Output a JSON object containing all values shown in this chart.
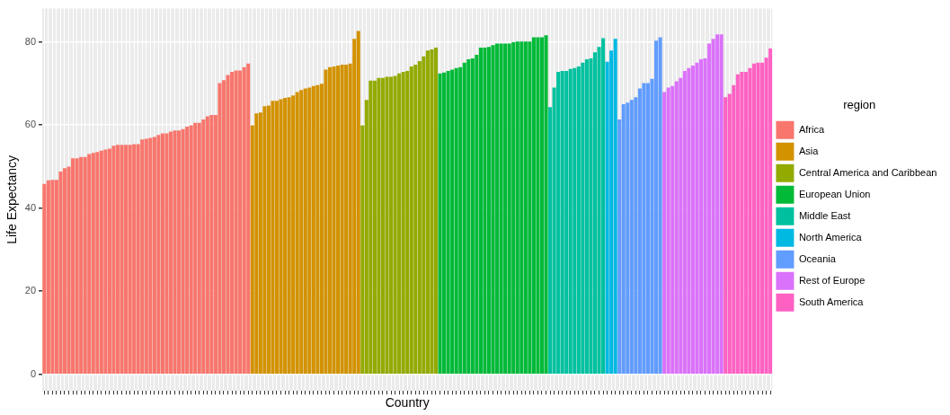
{
  "chart_data": {
    "type": "bar",
    "xlabel": "Country",
    "ylabel": "Life Expectancy",
    "legend_title": "region",
    "legend": "right",
    "grid": true,
    "tick_labels": "y",
    "ylim": [
      -4,
      88
    ],
    "yticks": [
      0,
      20,
      40,
      60,
      80
    ],
    "categories": [
      null,
      null,
      null,
      null,
      null,
      null,
      null,
      null,
      null,
      null,
      null,
      null,
      null,
      null,
      null,
      null,
      null,
      null,
      null,
      null,
      null,
      null,
      null,
      null,
      null,
      null,
      null,
      null,
      null,
      null,
      null,
      null,
      null,
      null,
      null,
      null,
      null,
      null,
      null,
      null,
      null,
      null,
      null,
      null,
      null,
      null,
      null,
      null,
      null,
      null,
      null,
      null,
      null,
      null,
      null,
      null,
      null,
      null,
      null,
      null,
      null,
      null,
      null,
      null,
      null,
      null,
      null,
      null,
      null,
      null,
      null,
      null,
      null,
      null,
      null,
      null,
      null,
      null,
      null,
      null,
      null,
      null,
      null,
      null,
      null,
      null,
      null,
      null,
      null,
      null,
      null,
      null,
      null,
      null,
      null,
      null,
      null,
      null,
      null,
      null,
      null,
      null,
      null,
      null,
      null,
      null,
      null,
      null,
      null,
      null,
      null,
      null,
      null,
      null,
      null,
      null,
      null,
      null,
      null,
      null,
      null,
      null,
      null,
      null,
      null,
      null,
      null,
      null,
      null,
      null,
      null,
      null,
      null,
      null,
      null,
      null,
      null,
      null,
      null,
      null,
      null,
      null,
      null,
      null,
      null,
      null,
      null,
      null,
      null,
      null,
      null,
      null,
      null,
      null,
      null,
      null,
      null,
      null,
      null,
      null,
      null,
      null,
      null,
      null,
      null,
      null,
      null,
      null,
      null,
      null,
      null,
      null,
      null,
      null,
      null,
      null,
      null,
      null,
      null
    ],
    "series": [
      {
        "name": "Africa",
        "color": "#f8766d",
        "values": [
          45.8,
          46.7,
          46.8,
          46.8,
          48.8,
          49.6,
          50.0,
          52.0,
          52.0,
          52.3,
          52.3,
          53.0,
          53.3,
          53.5,
          53.8,
          54.1,
          54.3,
          55.0,
          55.2,
          55.2,
          55.2,
          55.2,
          55.4,
          55.4,
          56.5,
          56.7,
          56.9,
          57.1,
          57.6,
          58.0,
          58.0,
          58.4,
          58.7,
          58.7,
          59.0,
          59.6,
          59.9,
          60.5,
          60.5,
          61.3,
          62.1,
          62.4,
          62.4,
          70.1,
          70.8,
          72.0,
          72.8,
          73.1,
          73.1,
          73.9,
          74.8,
          null,
          null,
          null,
          null,
          null,
          null,
          null,
          null,
          null,
          null,
          null,
          null,
          null,
          null,
          null,
          null,
          null,
          null,
          null,
          null,
          null,
          null,
          null,
          null,
          null,
          null,
          null,
          null,
          null,
          null,
          null,
          null,
          null,
          null,
          null,
          null,
          null,
          null,
          null,
          null,
          null,
          null,
          null,
          null,
          null,
          null,
          null,
          null,
          null,
          null,
          null,
          null,
          null,
          null,
          null,
          null,
          null,
          null,
          null,
          null,
          null,
          null,
          null,
          null,
          null,
          null,
          null,
          null,
          null,
          null,
          null,
          null,
          null,
          null,
          null,
          null,
          null,
          null,
          null,
          null,
          null,
          null,
          null,
          null,
          null,
          null,
          null,
          null,
          null,
          null,
          null,
          null,
          null,
          null,
          null,
          null,
          null,
          null,
          null,
          null,
          null,
          null,
          null,
          null,
          null,
          null,
          null,
          null,
          null,
          null,
          null,
          null,
          null,
          null,
          null,
          null,
          null,
          null,
          null,
          null,
          null,
          null,
          null,
          null,
          null,
          null,
          null,
          null
        ]
      },
      {
        "name": "Asia",
        "color": "#d39200",
        "values": [
          null,
          null,
          null,
          null,
          null,
          null,
          null,
          null,
          null,
          null,
          null,
          null,
          null,
          null,
          null,
          null,
          null,
          null,
          null,
          null,
          null,
          null,
          null,
          null,
          null,
          null,
          null,
          null,
          null,
          null,
          null,
          null,
          null,
          null,
          null,
          null,
          null,
          null,
          null,
          null,
          null,
          null,
          null,
          null,
          null,
          null,
          null,
          null,
          null,
          null,
          null,
          59.9,
          62.8,
          63.0,
          64.5,
          64.7,
          65.8,
          65.8,
          66.2,
          66.5,
          66.7,
          67.1,
          67.9,
          68.4,
          68.8,
          69.0,
          69.4,
          69.6,
          69.9,
          73.3,
          73.9,
          74.1,
          74.3,
          74.5,
          74.5,
          74.8,
          80.7,
          82.6,
          null,
          null,
          null,
          null,
          null,
          null,
          null,
          null,
          null,
          null,
          null,
          null,
          null,
          null,
          null,
          null,
          null,
          null,
          null,
          null,
          null,
          null,
          null,
          null,
          null,
          null,
          null,
          null,
          null,
          null,
          null,
          null,
          null,
          null,
          null,
          null,
          null,
          null,
          null,
          null,
          null,
          null,
          null,
          null,
          null,
          null,
          null,
          null,
          null,
          null,
          null,
          null,
          null,
          null,
          null,
          null,
          null,
          null,
          null,
          null,
          null,
          null,
          null,
          null,
          null,
          null,
          null,
          null,
          null,
          null,
          null,
          null,
          null,
          null,
          null,
          null,
          null,
          null,
          null,
          null,
          null,
          null,
          null,
          null,
          null,
          null,
          null,
          null,
          null,
          null,
          null,
          null,
          null,
          null,
          null,
          null,
          null,
          null,
          null,
          null,
          null
        ]
      },
      {
        "name": "Central America and Caribbean",
        "color": "#93aa00",
        "values": [
          null,
          null,
          null,
          null,
          null,
          null,
          null,
          null,
          null,
          null,
          null,
          null,
          null,
          null,
          null,
          null,
          null,
          null,
          null,
          null,
          null,
          null,
          null,
          null,
          null,
          null,
          null,
          null,
          null,
          null,
          null,
          null,
          null,
          null,
          null,
          null,
          null,
          null,
          null,
          null,
          null,
          null,
          null,
          null,
          null,
          null,
          null,
          null,
          null,
          null,
          null,
          null,
          null,
          null,
          null,
          null,
          null,
          null,
          null,
          null,
          null,
          null,
          null,
          null,
          null,
          null,
          null,
          null,
          null,
          null,
          null,
          null,
          null,
          null,
          null,
          null,
          null,
          null,
          59.9,
          66.0,
          70.7,
          70.7,
          71.3,
          71.3,
          71.6,
          71.6,
          71.8,
          72.4,
          72.8,
          73.0,
          74.1,
          74.5,
          75.4,
          76.5,
          77.9,
          78.2,
          78.6,
          null,
          null,
          null,
          null,
          null,
          null,
          null,
          null,
          null,
          null,
          null,
          null,
          null,
          null,
          null,
          null,
          null,
          null,
          null,
          null,
          null,
          null,
          null,
          null,
          null,
          null,
          null,
          null,
          null,
          null,
          null,
          null,
          null,
          null,
          null,
          null,
          null,
          null,
          null,
          null,
          null,
          null,
          null,
          null,
          null,
          null,
          null,
          null,
          null,
          null,
          null,
          null,
          null,
          null,
          null,
          null,
          null,
          null,
          null,
          null,
          null,
          null,
          null,
          null,
          null,
          null,
          null,
          null,
          null,
          null,
          null,
          null,
          null,
          null,
          null,
          null,
          null,
          null,
          null,
          null,
          null,
          null
        ]
      },
      {
        "name": "European Union",
        "color": "#00ba38",
        "values": [
          null,
          null,
          null,
          null,
          null,
          null,
          null,
          null,
          null,
          null,
          null,
          null,
          null,
          null,
          null,
          null,
          null,
          null,
          null,
          null,
          null,
          null,
          null,
          null,
          null,
          null,
          null,
          null,
          null,
          null,
          null,
          null,
          null,
          null,
          null,
          null,
          null,
          null,
          null,
          null,
          null,
          null,
          null,
          null,
          null,
          null,
          null,
          null,
          null,
          null,
          null,
          null,
          null,
          null,
          null,
          null,
          null,
          null,
          null,
          null,
          null,
          null,
          null,
          null,
          null,
          null,
          null,
          null,
          null,
          null,
          null,
          null,
          null,
          null,
          null,
          null,
          null,
          null,
          null,
          null,
          null,
          null,
          null,
          null,
          null,
          null,
          null,
          null,
          null,
          null,
          null,
          null,
          null,
          null,
          null,
          null,
          null,
          72.4,
          72.6,
          73.0,
          73.3,
          73.7,
          73.9,
          75.0,
          75.8,
          76.0,
          76.9,
          78.6,
          78.6,
          78.8,
          79.2,
          79.6,
          79.6,
          79.6,
          79.6,
          79.9,
          80.1,
          80.1,
          80.1,
          80.1,
          81.1,
          81.1,
          81.1,
          81.6,
          null,
          null,
          null,
          null,
          null,
          null,
          null,
          null,
          null,
          null,
          null,
          null,
          null,
          null,
          null,
          null,
          null,
          null,
          null,
          null,
          null,
          null,
          null,
          null,
          null,
          null,
          null,
          null,
          null,
          null,
          null,
          null,
          null,
          null,
          null,
          null,
          null,
          null,
          null,
          null,
          null,
          null,
          null,
          null,
          null,
          null,
          null,
          null,
          null,
          null,
          null,
          null,
          null,
          null,
          null
        ]
      },
      {
        "name": "Middle East",
        "color": "#00c19f",
        "values": [
          null,
          null,
          null,
          null,
          null,
          null,
          null,
          null,
          null,
          null,
          null,
          null,
          null,
          null,
          null,
          null,
          null,
          null,
          null,
          null,
          null,
          null,
          null,
          null,
          null,
          null,
          null,
          null,
          null,
          null,
          null,
          null,
          null,
          null,
          null,
          null,
          null,
          null,
          null,
          null,
          null,
          null,
          null,
          null,
          null,
          null,
          null,
          null,
          null,
          null,
          null,
          null,
          null,
          null,
          null,
          null,
          null,
          null,
          null,
          null,
          null,
          null,
          null,
          null,
          null,
          null,
          null,
          null,
          null,
          null,
          null,
          null,
          null,
          null,
          null,
          null,
          null,
          null,
          null,
          null,
          null,
          null,
          null,
          null,
          null,
          null,
          null,
          null,
          null,
          null,
          null,
          null,
          null,
          null,
          null,
          null,
          null,
          null,
          null,
          null,
          null,
          null,
          null,
          null,
          null,
          null,
          null,
          null,
          null,
          null,
          null,
          null,
          null,
          null,
          null,
          null,
          null,
          null,
          null,
          null,
          null,
          null,
          null,
          null,
          64.3,
          69.0,
          72.8,
          73.0,
          73.0,
          73.5,
          73.7,
          74.1,
          75.0,
          75.8,
          76.0,
          77.5,
          78.8,
          80.9,
          null,
          null,
          null,
          null,
          null,
          null,
          null,
          null,
          null,
          null,
          null,
          null,
          null,
          null,
          null,
          null,
          null,
          null,
          null,
          null,
          null,
          null,
          null,
          null,
          null,
          null,
          null,
          null,
          null,
          null,
          null,
          null,
          null,
          null,
          null,
          null,
          null,
          null,
          null,
          null,
          null
        ]
      },
      {
        "name": "North America",
        "color": "#00b9e3",
        "values": [
          null,
          null,
          null,
          null,
          null,
          null,
          null,
          null,
          null,
          null,
          null,
          null,
          null,
          null,
          null,
          null,
          null,
          null,
          null,
          null,
          null,
          null,
          null,
          null,
          null,
          null,
          null,
          null,
          null,
          null,
          null,
          null,
          null,
          null,
          null,
          null,
          null,
          null,
          null,
          null,
          null,
          null,
          null,
          null,
          null,
          null,
          null,
          null,
          null,
          null,
          null,
          null,
          null,
          null,
          null,
          null,
          null,
          null,
          null,
          null,
          null,
          null,
          null,
          null,
          null,
          null,
          null,
          null,
          null,
          null,
          null,
          null,
          null,
          null,
          null,
          null,
          null,
          null,
          null,
          null,
          null,
          null,
          null,
          null,
          null,
          null,
          null,
          null,
          null,
          null,
          null,
          null,
          null,
          null,
          null,
          null,
          null,
          null,
          null,
          null,
          null,
          null,
          null,
          null,
          null,
          null,
          null,
          null,
          null,
          null,
          null,
          null,
          null,
          null,
          null,
          null,
          null,
          null,
          null,
          null,
          null,
          null,
          null,
          null,
          null,
          null,
          null,
          null,
          null,
          null,
          null,
          null,
          null,
          null,
          null,
          null,
          null,
          null,
          75.2,
          77.9,
          80.7,
          null,
          null,
          null,
          null,
          null,
          null,
          null,
          null,
          null,
          null,
          null,
          null,
          null,
          null,
          null,
          null,
          null,
          null,
          null,
          null,
          null,
          null,
          null,
          null,
          null,
          null,
          null,
          null,
          null,
          null,
          null,
          null,
          null,
          null,
          null,
          null,
          null,
          null
        ]
      },
      {
        "name": "Oceania",
        "color": "#619cff",
        "values": [
          null,
          null,
          null,
          null,
          null,
          null,
          null,
          null,
          null,
          null,
          null,
          null,
          null,
          null,
          null,
          null,
          null,
          null,
          null,
          null,
          null,
          null,
          null,
          null,
          null,
          null,
          null,
          null,
          null,
          null,
          null,
          null,
          null,
          null,
          null,
          null,
          null,
          null,
          null,
          null,
          null,
          null,
          null,
          null,
          null,
          null,
          null,
          null,
          null,
          null,
          null,
          null,
          null,
          null,
          null,
          null,
          null,
          null,
          null,
          null,
          null,
          null,
          null,
          null,
          null,
          null,
          null,
          null,
          null,
          null,
          null,
          null,
          null,
          null,
          null,
          null,
          null,
          null,
          null,
          null,
          null,
          null,
          null,
          null,
          null,
          null,
          null,
          null,
          null,
          null,
          null,
          null,
          null,
          null,
          null,
          null,
          null,
          null,
          null,
          null,
          null,
          null,
          null,
          null,
          null,
          null,
          null,
          null,
          null,
          null,
          null,
          null,
          null,
          null,
          null,
          null,
          null,
          null,
          null,
          null,
          null,
          null,
          null,
          null,
          null,
          null,
          null,
          null,
          null,
          null,
          null,
          null,
          null,
          null,
          null,
          null,
          null,
          null,
          null,
          null,
          null,
          61.3,
          65.0,
          65.4,
          66.0,
          66.7,
          68.8,
          70.1,
          70.1,
          71.1,
          80.3,
          81.1,
          null,
          null,
          null,
          null,
          null,
          null,
          null,
          null,
          null,
          null,
          null,
          null,
          null,
          null,
          null,
          null,
          null,
          null,
          null,
          null,
          null,
          null,
          null,
          null,
          null,
          null,
          null
        ]
      },
      {
        "name": "Rest of Europe",
        "color": "#db72fb",
        "values": [
          null,
          null,
          null,
          null,
          null,
          null,
          null,
          null,
          null,
          null,
          null,
          null,
          null,
          null,
          null,
          null,
          null,
          null,
          null,
          null,
          null,
          null,
          null,
          null,
          null,
          null,
          null,
          null,
          null,
          null,
          null,
          null,
          null,
          null,
          null,
          null,
          null,
          null,
          null,
          null,
          null,
          null,
          null,
          null,
          null,
          null,
          null,
          null,
          null,
          null,
          null,
          null,
          null,
          null,
          null,
          null,
          null,
          null,
          null,
          null,
          null,
          null,
          null,
          null,
          null,
          null,
          null,
          null,
          null,
          null,
          null,
          null,
          null,
          null,
          null,
          null,
          null,
          null,
          null,
          null,
          null,
          null,
          null,
          null,
          null,
          null,
          null,
          null,
          null,
          null,
          null,
          null,
          null,
          null,
          null,
          null,
          null,
          null,
          null,
          null,
          null,
          null,
          null,
          null,
          null,
          null,
          null,
          null,
          null,
          null,
          null,
          null,
          null,
          null,
          null,
          null,
          null,
          null,
          null,
          null,
          null,
          null,
          null,
          null,
          null,
          null,
          null,
          null,
          null,
          null,
          null,
          null,
          null,
          null,
          null,
          null,
          null,
          null,
          null,
          null,
          null,
          null,
          null,
          null,
          null,
          null,
          null,
          null,
          null,
          null,
          null,
          null,
          67.9,
          69.0,
          69.4,
          70.5,
          71.3,
          73.0,
          73.7,
          74.3,
          75.0,
          75.8,
          76.0,
          79.6,
          80.7,
          81.8,
          81.8,
          null,
          null,
          null,
          null,
          null,
          null,
          null,
          null,
          null,
          null,
          null,
          null
        ]
      },
      {
        "name": "South America",
        "color": "#ff61c3",
        "values": [
          null,
          null,
          null,
          null,
          null,
          null,
          null,
          null,
          null,
          null,
          null,
          null,
          null,
          null,
          null,
          null,
          null,
          null,
          null,
          null,
          null,
          null,
          null,
          null,
          null,
          null,
          null,
          null,
          null,
          null,
          null,
          null,
          null,
          null,
          null,
          null,
          null,
          null,
          null,
          null,
          null,
          null,
          null,
          null,
          null,
          null,
          null,
          null,
          null,
          null,
          null,
          null,
          null,
          null,
          null,
          null,
          null,
          null,
          null,
          null,
          null,
          null,
          null,
          null,
          null,
          null,
          null,
          null,
          null,
          null,
          null,
          null,
          null,
          null,
          null,
          null,
          null,
          null,
          null,
          null,
          null,
          null,
          null,
          null,
          null,
          null,
          null,
          null,
          null,
          null,
          null,
          null,
          null,
          null,
          null,
          null,
          null,
          null,
          null,
          null,
          null,
          null,
          null,
          null,
          null,
          null,
          null,
          null,
          null,
          null,
          null,
          null,
          null,
          null,
          null,
          null,
          null,
          null,
          null,
          null,
          null,
          null,
          null,
          null,
          null,
          null,
          null,
          null,
          null,
          null,
          null,
          null,
          null,
          null,
          null,
          null,
          null,
          null,
          null,
          null,
          null,
          null,
          null,
          null,
          null,
          null,
          null,
          null,
          null,
          null,
          null,
          null,
          null,
          null,
          null,
          null,
          null,
          null,
          null,
          null,
          null,
          null,
          null,
          null,
          null,
          null,
          null,
          66.7,
          67.5,
          69.6,
          72.2,
          72.8,
          72.8,
          73.7,
          74.8,
          75.0,
          75.0,
          76.2,
          78.4
        ]
      }
    ]
  }
}
